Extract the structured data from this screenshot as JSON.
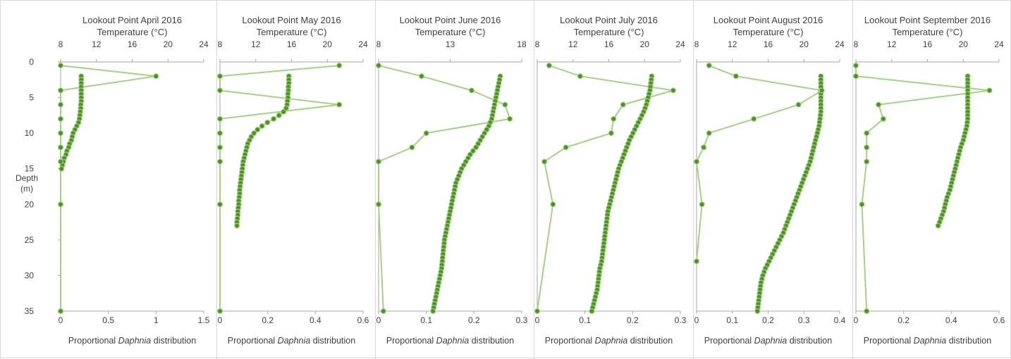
{
  "depth_axis_title": "Depth",
  "depth_axis_unit": "(m)",
  "colors": {
    "series": "#a6d08a",
    "marker_fill": "#4e8f2a",
    "marker_edge": "#9ccc7a",
    "axis": "#a6a6a6",
    "text": "#404040"
  },
  "chart_data": [
    {
      "type": "line",
      "title": "Lookout Point April 2016",
      "top_axis_label": "Temperature (°C)",
      "bottom_axis_label": "Proportional Daphnia distribution",
      "bottom_ticks": [
        "0",
        "0.5",
        "1",
        "1.5"
      ],
      "top_ticks": [
        "8",
        "12",
        "16",
        "20",
        "24"
      ],
      "y_ticks": [
        "0",
        "5",
        "10",
        "15",
        "20",
        "25",
        "30",
        "35"
      ],
      "xlim_distribution": [
        0,
        1.5
      ],
      "xlim_temperature": [
        8,
        24
      ],
      "ylim": [
        0,
        35
      ],
      "daphnia": {
        "depth": [
          0.5,
          2,
          4,
          6,
          8,
          10,
          12,
          14,
          20,
          35
        ],
        "value": [
          0.0,
          1.0,
          0.0,
          0.0,
          0.0,
          0.0,
          0.0,
          0.0,
          0.0,
          0.0
        ]
      },
      "temperature": {
        "depth": [
          2,
          2.5,
          3,
          3.5,
          4,
          4.5,
          5,
          5.5,
          6,
          6.5,
          7,
          7.5,
          8,
          8.5,
          9,
          9.5,
          10,
          10.5,
          11,
          11.5,
          12,
          12.5,
          13,
          13.5,
          14,
          14.5,
          15
        ],
        "value": [
          10.3,
          10.3,
          10.3,
          10.3,
          10.3,
          10.3,
          10.3,
          10.3,
          10.25,
          10.25,
          10.2,
          10.15,
          10.1,
          10.0,
          9.8,
          9.6,
          9.4,
          9.3,
          9.2,
          9.0,
          8.9,
          8.7,
          8.6,
          8.4,
          8.3,
          8.2,
          8.1
        ]
      }
    },
    {
      "type": "line",
      "title": "Lookout Point May 2016",
      "top_axis_label": "Temperature (°C)",
      "bottom_axis_label": "Proportional Daphnia distribution",
      "bottom_ticks": [
        "0",
        "0.2",
        "0.4",
        "0.6"
      ],
      "top_ticks": [
        "8",
        "12",
        "16",
        "20",
        "24"
      ],
      "y_ticks": [],
      "xlim_distribution": [
        0,
        0.6
      ],
      "xlim_temperature": [
        8,
        24
      ],
      "ylim": [
        0,
        35
      ],
      "daphnia": {
        "depth": [
          0.5,
          2,
          4,
          6,
          8,
          10,
          12,
          14,
          20,
          35
        ],
        "value": [
          0.5,
          0.0,
          0.0,
          0.5,
          0.0,
          0.0,
          0.0,
          0.0,
          0.0,
          0.0
        ]
      },
      "temperature": {
        "depth": [
          2,
          2.5,
          3,
          3.5,
          4,
          4.5,
          5,
          5.5,
          6,
          6.5,
          7,
          7.5,
          8,
          8.5,
          9,
          9.5,
          10,
          10.5,
          11,
          11.5,
          12,
          12.5,
          13,
          13.5,
          14,
          14.5,
          15,
          15.5,
          16,
          16.5,
          17,
          17.5,
          18,
          18.5,
          19,
          19.5,
          20,
          20.5,
          21,
          21.5,
          22,
          22.5,
          23
        ],
        "value": [
          15.7,
          15.7,
          15.7,
          15.65,
          15.65,
          15.6,
          15.6,
          15.55,
          15.5,
          15.4,
          15.1,
          14.6,
          14.0,
          13.3,
          12.7,
          12.2,
          11.8,
          11.5,
          11.3,
          11.1,
          11.0,
          10.9,
          10.8,
          10.7,
          10.6,
          10.55,
          10.5,
          10.45,
          10.4,
          10.35,
          10.3,
          10.25,
          10.2,
          10.2,
          10.15,
          10.1,
          10.1,
          10.05,
          10.0,
          10.0,
          9.95,
          9.9,
          9.9
        ]
      }
    },
    {
      "type": "line",
      "title": "Lookout Point June 2016",
      "top_axis_label": "Temperature (°C)",
      "bottom_axis_label": "Proportional Daphnia distribution",
      "bottom_ticks": [
        "0",
        "0.1",
        "0.2",
        "0.3"
      ],
      "top_ticks": [
        "8",
        "13",
        "18"
      ],
      "y_ticks": [],
      "xlim_distribution": [
        0,
        0.3
      ],
      "xlim_temperature": [
        8,
        18
      ],
      "ylim": [
        0,
        35
      ],
      "daphnia": {
        "depth": [
          0.5,
          2,
          4,
          6,
          8,
          10,
          12,
          14,
          20,
          35
        ],
        "value": [
          0.0,
          0.09,
          0.195,
          0.265,
          0.275,
          0.1,
          0.07,
          0.0,
          0.0,
          0.01
        ]
      },
      "temperature": {
        "depth": [
          2,
          2.5,
          3,
          3.5,
          4,
          4.5,
          5,
          5.5,
          6,
          6.5,
          7,
          7.5,
          8,
          8.5,
          9,
          9.5,
          10,
          10.5,
          11,
          11.5,
          12,
          12.5,
          13,
          13.5,
          14,
          14.5,
          15,
          15.5,
          16,
          16.5,
          17,
          17.5,
          18,
          18.5,
          19,
          19.5,
          20,
          20.5,
          21,
          21.5,
          22,
          22.5,
          23,
          23.5,
          24,
          24.5,
          25,
          25.5,
          26,
          26.5,
          27,
          27.5,
          28,
          28.5,
          29,
          29.5,
          30,
          30.5,
          31,
          31.5,
          32,
          32.5,
          33,
          33.5,
          34,
          34.5,
          35
        ],
        "value": [
          16.5,
          16.45,
          16.4,
          16.35,
          16.3,
          16.25,
          16.2,
          16.15,
          16.1,
          16.05,
          16.0,
          15.95,
          15.9,
          15.8,
          15.7,
          15.55,
          15.4,
          15.25,
          15.1,
          14.95,
          14.8,
          14.6,
          14.4,
          14.25,
          14.1,
          13.95,
          13.8,
          13.7,
          13.6,
          13.5,
          13.4,
          13.35,
          13.3,
          13.25,
          13.2,
          13.15,
          13.1,
          13.05,
          13.0,
          12.95,
          12.9,
          12.85,
          12.8,
          12.75,
          12.7,
          12.65,
          12.6,
          12.58,
          12.55,
          12.52,
          12.5,
          12.47,
          12.45,
          12.42,
          12.4,
          12.35,
          12.3,
          12.25,
          12.2,
          12.15,
          12.1,
          12.05,
          12.0,
          11.95,
          11.9,
          11.85,
          11.8
        ]
      }
    },
    {
      "type": "line",
      "title": "Lookout Point July 2016",
      "top_axis_label": "Temperature (°C)",
      "bottom_axis_label": "Proportional Daphnia distribution",
      "bottom_ticks": [
        "0",
        "0.1",
        "0.2",
        "0.3"
      ],
      "top_ticks": [
        "8",
        "12",
        "16",
        "20",
        "24"
      ],
      "y_ticks": [],
      "xlim_distribution": [
        0,
        0.3
      ],
      "xlim_temperature": [
        8,
        24
      ],
      "ylim": [
        0,
        35
      ],
      "daphnia": {
        "depth": [
          0.5,
          2,
          4,
          6,
          8,
          10,
          12,
          14,
          20,
          35
        ],
        "value": [
          0.025,
          0.09,
          0.285,
          0.18,
          0.16,
          0.155,
          0.06,
          0.015,
          0.033,
          0.0
        ]
      },
      "temperature": {
        "depth": [
          2,
          2.5,
          3,
          3.5,
          4,
          4.5,
          5,
          5.5,
          6,
          6.5,
          7,
          7.5,
          8,
          8.5,
          9,
          9.5,
          10,
          10.5,
          11,
          11.5,
          12,
          12.5,
          13,
          13.5,
          14,
          14.5,
          15,
          15.5,
          16,
          16.5,
          17,
          17.5,
          18,
          18.5,
          19,
          19.5,
          20,
          20.5,
          21,
          21.5,
          22,
          22.5,
          23,
          23.5,
          24,
          24.5,
          25,
          25.5,
          26,
          26.5,
          27,
          27.5,
          28,
          28.5,
          29,
          29.5,
          30,
          30.5,
          31,
          31.5,
          32,
          32.5,
          33,
          33.5,
          34,
          34.5,
          35
        ],
        "value": [
          20.8,
          20.75,
          20.7,
          20.65,
          20.6,
          20.5,
          20.4,
          20.3,
          20.2,
          20.05,
          19.9,
          19.7,
          19.5,
          19.3,
          19.1,
          18.9,
          18.7,
          18.5,
          18.3,
          18.15,
          18.0,
          17.85,
          17.7,
          17.55,
          17.4,
          17.25,
          17.1,
          17.0,
          16.9,
          16.8,
          16.7,
          16.6,
          16.5,
          16.4,
          16.3,
          16.2,
          16.1,
          16.0,
          15.9,
          15.85,
          15.8,
          15.75,
          15.7,
          15.65,
          15.6,
          15.55,
          15.5,
          15.45,
          15.4,
          15.35,
          15.3,
          15.25,
          15.2,
          15.1,
          15.0,
          14.95,
          14.9,
          14.85,
          14.8,
          14.75,
          14.7,
          14.6,
          14.5,
          14.4,
          14.3,
          14.2,
          14.1
        ]
      }
    },
    {
      "type": "line",
      "title": "Lookout Point August 2016",
      "top_axis_label": "Temperature (°C)",
      "bottom_axis_label": "Proportional Daphnia distribution",
      "bottom_ticks": [
        "0",
        "0.1",
        "0.2",
        "0.3",
        "0.4"
      ],
      "top_ticks": [
        "8",
        "12",
        "16",
        "20",
        "24"
      ],
      "y_ticks": [],
      "xlim_distribution": [
        0,
        0.4
      ],
      "xlim_temperature": [
        8,
        24
      ],
      "ylim": [
        0,
        35
      ],
      "daphnia": {
        "depth": [
          0.5,
          2,
          4,
          6,
          8,
          10,
          12,
          14,
          20,
          28
        ],
        "value": [
          0.035,
          0.11,
          0.35,
          0.285,
          0.16,
          0.035,
          0.02,
          0.0,
          0.015,
          0.0
        ]
      },
      "temperature": {
        "depth": [
          2,
          2.5,
          3,
          3.5,
          4,
          4.5,
          5,
          5.5,
          6,
          6.5,
          7,
          7.5,
          8,
          8.5,
          9,
          9.5,
          10,
          10.5,
          11,
          11.5,
          12,
          12.5,
          13,
          13.5,
          14,
          14.5,
          15,
          15.5,
          16,
          16.5,
          17,
          17.5,
          18,
          18.5,
          19,
          19.5,
          20,
          20.5,
          21,
          21.5,
          22,
          22.5,
          23,
          23.5,
          24,
          24.5,
          25,
          25.5,
          26,
          26.5,
          27,
          27.5,
          28,
          28.5,
          29,
          29.5,
          30,
          30.5,
          31,
          31.5,
          32,
          32.5,
          33,
          33.5,
          34,
          34.5,
          35
        ],
        "value": [
          21.9,
          21.9,
          21.9,
          21.9,
          21.9,
          21.9,
          21.9,
          21.9,
          21.9,
          21.9,
          21.9,
          21.85,
          21.8,
          21.75,
          21.7,
          21.6,
          21.5,
          21.4,
          21.3,
          21.2,
          21.1,
          21.0,
          20.9,
          20.8,
          20.7,
          20.55,
          20.4,
          20.25,
          20.1,
          19.95,
          19.8,
          19.65,
          19.5,
          19.35,
          19.2,
          19.05,
          18.9,
          18.75,
          18.6,
          18.45,
          18.3,
          18.15,
          18.0,
          17.85,
          17.7,
          17.5,
          17.3,
          17.1,
          16.9,
          16.7,
          16.5,
          16.3,
          16.1,
          15.9,
          15.7,
          15.55,
          15.4,
          15.3,
          15.2,
          15.15,
          15.1,
          15.05,
          15.0,
          14.95,
          14.9,
          14.85,
          14.8
        ]
      }
    },
    {
      "type": "line",
      "title": "Lookout Point September 2016",
      "top_axis_label": "Temperature (°C)",
      "bottom_axis_label": "Proportional Daphnia distribution",
      "bottom_ticks": [
        "0",
        "0.2",
        "0.4",
        "0.6"
      ],
      "top_ticks": [
        "8",
        "12",
        "16",
        "20",
        "24"
      ],
      "y_ticks": [],
      "xlim_distribution": [
        0,
        0.6
      ],
      "xlim_temperature": [
        8,
        24
      ],
      "ylim": [
        0,
        35
      ],
      "daphnia": {
        "depth": [
          0.5,
          2,
          4,
          6,
          8,
          10,
          12,
          14,
          20,
          35
        ],
        "value": [
          0.0,
          0.0,
          0.56,
          0.095,
          0.115,
          0.045,
          0.045,
          0.045,
          0.025,
          0.045
        ]
      },
      "temperature": {
        "depth": [
          2,
          2.5,
          3,
          3.5,
          4,
          4.5,
          5,
          5.5,
          6,
          6.5,
          7,
          7.5,
          8,
          8.5,
          9,
          9.5,
          10,
          10.5,
          11,
          11.5,
          12,
          12.5,
          13,
          13.5,
          14,
          14.5,
          15,
          15.5,
          16,
          16.5,
          17,
          17.5,
          18,
          18.5,
          19,
          19.5,
          20,
          20.5,
          21,
          21.5,
          22,
          22.5,
          23
        ],
        "value": [
          20.5,
          20.5,
          20.5,
          20.5,
          20.5,
          20.5,
          20.5,
          20.5,
          20.5,
          20.5,
          20.5,
          20.5,
          20.5,
          20.45,
          20.4,
          20.3,
          20.2,
          20.1,
          20.0,
          19.85,
          19.7,
          19.6,
          19.5,
          19.4,
          19.3,
          19.2,
          19.1,
          19.0,
          18.9,
          18.8,
          18.7,
          18.6,
          18.5,
          18.35,
          18.2,
          18.1,
          18.0,
          17.9,
          17.8,
          17.65,
          17.5,
          17.35,
          17.2
        ]
      }
    }
  ]
}
